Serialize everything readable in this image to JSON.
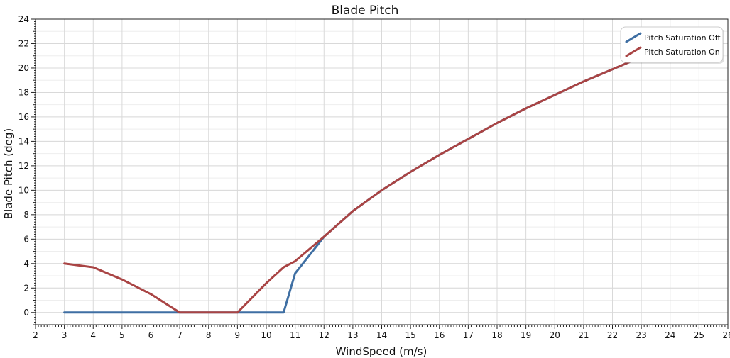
{
  "chart_data": {
    "type": "line",
    "title": "Blade Pitch",
    "xlabel": "WindSpeed (m/s)",
    "ylabel": "Blade Pitch (deg)",
    "xlim": [
      2,
      26
    ],
    "ylim": [
      -1,
      24
    ],
    "x_ticks": [
      2,
      3,
      4,
      5,
      6,
      7,
      8,
      9,
      10,
      11,
      12,
      13,
      14,
      15,
      16,
      17,
      18,
      19,
      20,
      21,
      22,
      23,
      24,
      25,
      26
    ],
    "y_ticks": [
      0,
      2,
      4,
      6,
      8,
      10,
      12,
      14,
      16,
      18,
      20,
      22,
      24
    ],
    "grid": true,
    "legend_position": "top-right",
    "series": [
      {
        "name": "Pitch Saturation Off",
        "color": "#3F6FA3",
        "x": [
          3,
          4,
          5,
          6,
          7,
          8,
          9,
          10,
          10.6,
          11,
          12,
          13,
          14,
          15,
          16,
          17,
          18,
          19,
          20,
          21,
          22,
          23
        ],
        "y": [
          0,
          0,
          0,
          0,
          0,
          0,
          0,
          0,
          0,
          3.2,
          6.2,
          8.3,
          10.0,
          11.5,
          12.9,
          14.2,
          15.5,
          16.7,
          17.8,
          18.9,
          19.9,
          20.9
        ]
      },
      {
        "name": "Pitch Saturation On",
        "color": "#A94444",
        "x": [
          3,
          4,
          5,
          6,
          7,
          8,
          9,
          10,
          10.6,
          11,
          12,
          13,
          14,
          15,
          16,
          17,
          18,
          19,
          20,
          21,
          22,
          23
        ],
        "y": [
          4.0,
          3.7,
          2.7,
          1.5,
          0,
          0,
          0,
          2.4,
          3.7,
          4.2,
          6.2,
          8.3,
          10.0,
          11.5,
          12.9,
          14.2,
          15.5,
          16.7,
          17.8,
          18.9,
          19.9,
          20.9
        ]
      }
    ]
  }
}
